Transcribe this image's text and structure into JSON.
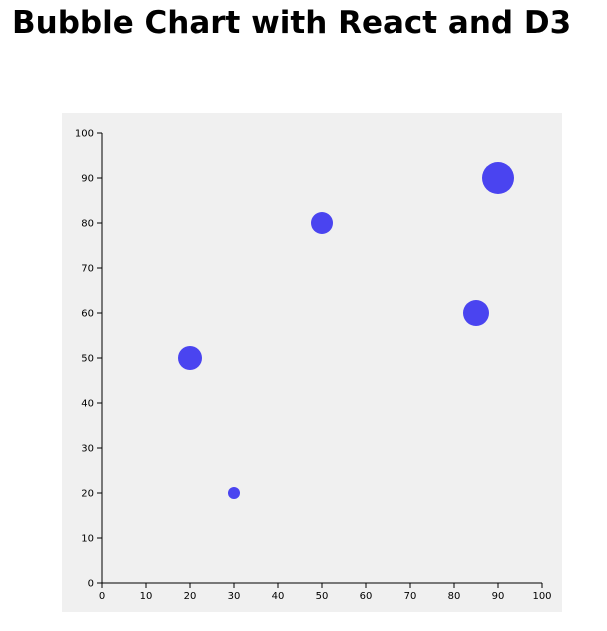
{
  "chart_data": {
    "type": "scatter",
    "title": "Bubble Chart with React and D3",
    "x": [
      20,
      30,
      50,
      85,
      90
    ],
    "values": [
      50,
      20,
      80,
      60,
      90
    ],
    "sizes": [
      12,
      6,
      11,
      13,
      16
    ],
    "color": "#4a44f0",
    "xlim": [
      0,
      100
    ],
    "xticks": [
      0,
      10,
      20,
      30,
      40,
      50,
      60,
      70,
      80,
      90,
      100
    ],
    "ylim": [
      0,
      100
    ],
    "yticks": [
      0,
      10,
      20,
      30,
      40,
      50,
      60,
      70,
      80,
      90,
      100
    ]
  }
}
